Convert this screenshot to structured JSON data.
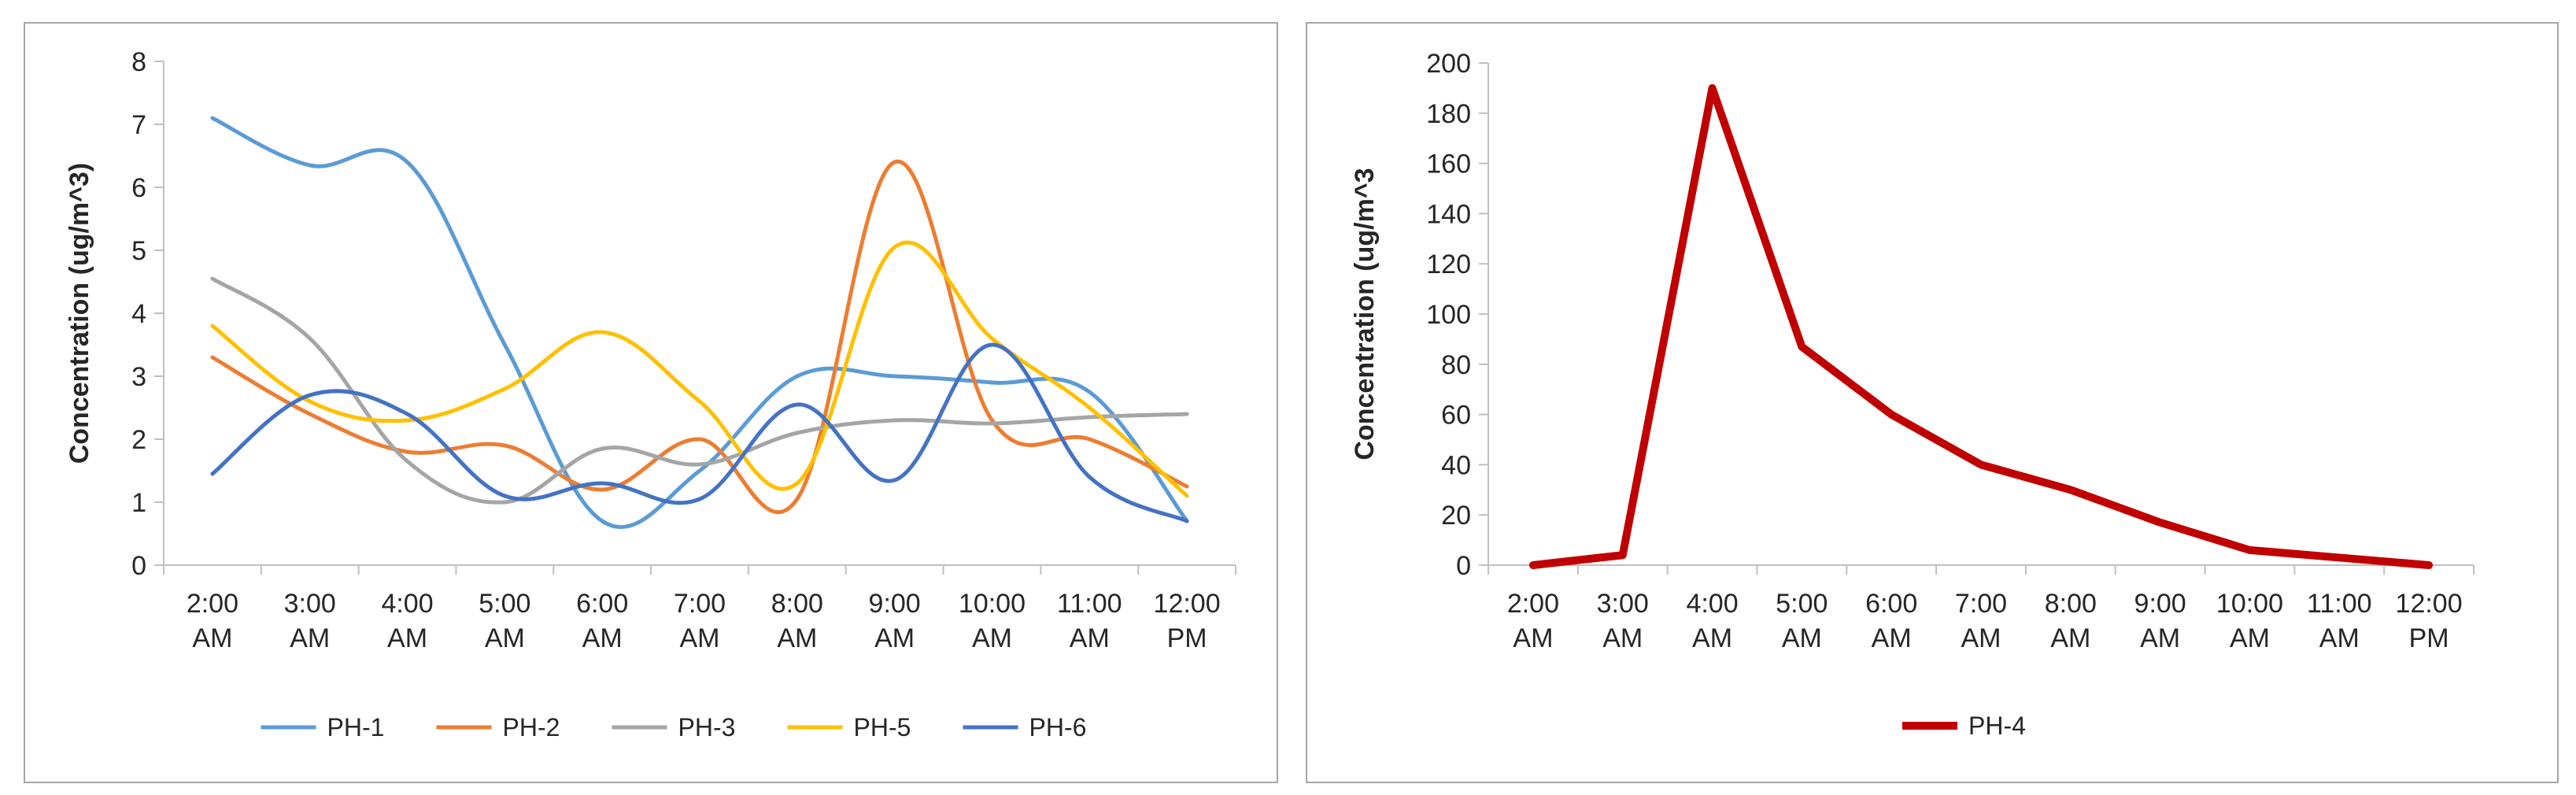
{
  "chart_data": [
    {
      "type": "line",
      "smooth": true,
      "title": "",
      "xlabel": "",
      "ylabel": "Concentration  (ug/m^3)",
      "categories": [
        [
          "2:00",
          "AM"
        ],
        [
          "3:00",
          "AM"
        ],
        [
          "4:00",
          "AM"
        ],
        [
          "5:00",
          "AM"
        ],
        [
          "6:00",
          "AM"
        ],
        [
          "7:00",
          "AM"
        ],
        [
          "8:00",
          "AM"
        ],
        [
          "9:00",
          "AM"
        ],
        [
          "10:00",
          "AM"
        ],
        [
          "11:00",
          "AM"
        ],
        [
          "12:00",
          "PM"
        ]
      ],
      "ylim": [
        0,
        8
      ],
      "yticks": [
        0,
        1,
        2,
        3,
        4,
        5,
        6,
        7,
        8
      ],
      "legend_position": "bottom",
      "series": [
        {
          "name": "PH-1",
          "color": "#5B9BD5",
          "values": [
            7.1,
            6.35,
            6.4,
            3.5,
            0.7,
            1.5,
            3.0,
            3.0,
            2.9,
            2.75,
            0.7
          ]
        },
        {
          "name": "PH-2",
          "color": "#ED7D31",
          "values": [
            3.3,
            2.4,
            1.8,
            1.9,
            1.2,
            2.0,
            1.05,
            6.4,
            2.3,
            2.0,
            1.25
          ]
        },
        {
          "name": "PH-3",
          "color": "#A5A5A5",
          "values": [
            4.55,
            3.6,
            1.65,
            1.0,
            1.85,
            1.6,
            2.1,
            2.3,
            2.25,
            2.35,
            2.4
          ]
        },
        {
          "name": "PH-5",
          "color": "#FFC000",
          "values": [
            3.8,
            2.6,
            2.3,
            2.8,
            3.7,
            2.6,
            1.3,
            5.05,
            3.6,
            2.5,
            1.1
          ]
        },
        {
          "name": "PH-6",
          "color": "#4472C4",
          "values": [
            1.45,
            2.7,
            2.4,
            1.1,
            1.3,
            1.05,
            2.55,
            1.35,
            3.5,
            1.4,
            0.7
          ]
        }
      ]
    },
    {
      "type": "line",
      "smooth": false,
      "title": "",
      "xlabel": "",
      "ylabel": "Concentration  (ug/m^3",
      "categories": [
        [
          "2:00",
          "AM"
        ],
        [
          "3:00",
          "AM"
        ],
        [
          "4:00",
          "AM"
        ],
        [
          "5:00",
          "AM"
        ],
        [
          "6:00",
          "AM"
        ],
        [
          "7:00",
          "AM"
        ],
        [
          "8:00",
          "AM"
        ],
        [
          "9:00",
          "AM"
        ],
        [
          "10:00",
          "AM"
        ],
        [
          "11:00",
          "AM"
        ],
        [
          "12:00",
          "PM"
        ]
      ],
      "ylim": [
        0,
        200
      ],
      "yticks": [
        0,
        20,
        40,
        60,
        80,
        100,
        120,
        140,
        160,
        180,
        200
      ],
      "legend_position": "bottom",
      "series": [
        {
          "name": "PH-4",
          "color": "#C00000",
          "values": [
            0,
            4,
            190,
            87,
            60,
            40,
            30,
            17,
            6,
            3,
            0
          ]
        }
      ]
    }
  ]
}
